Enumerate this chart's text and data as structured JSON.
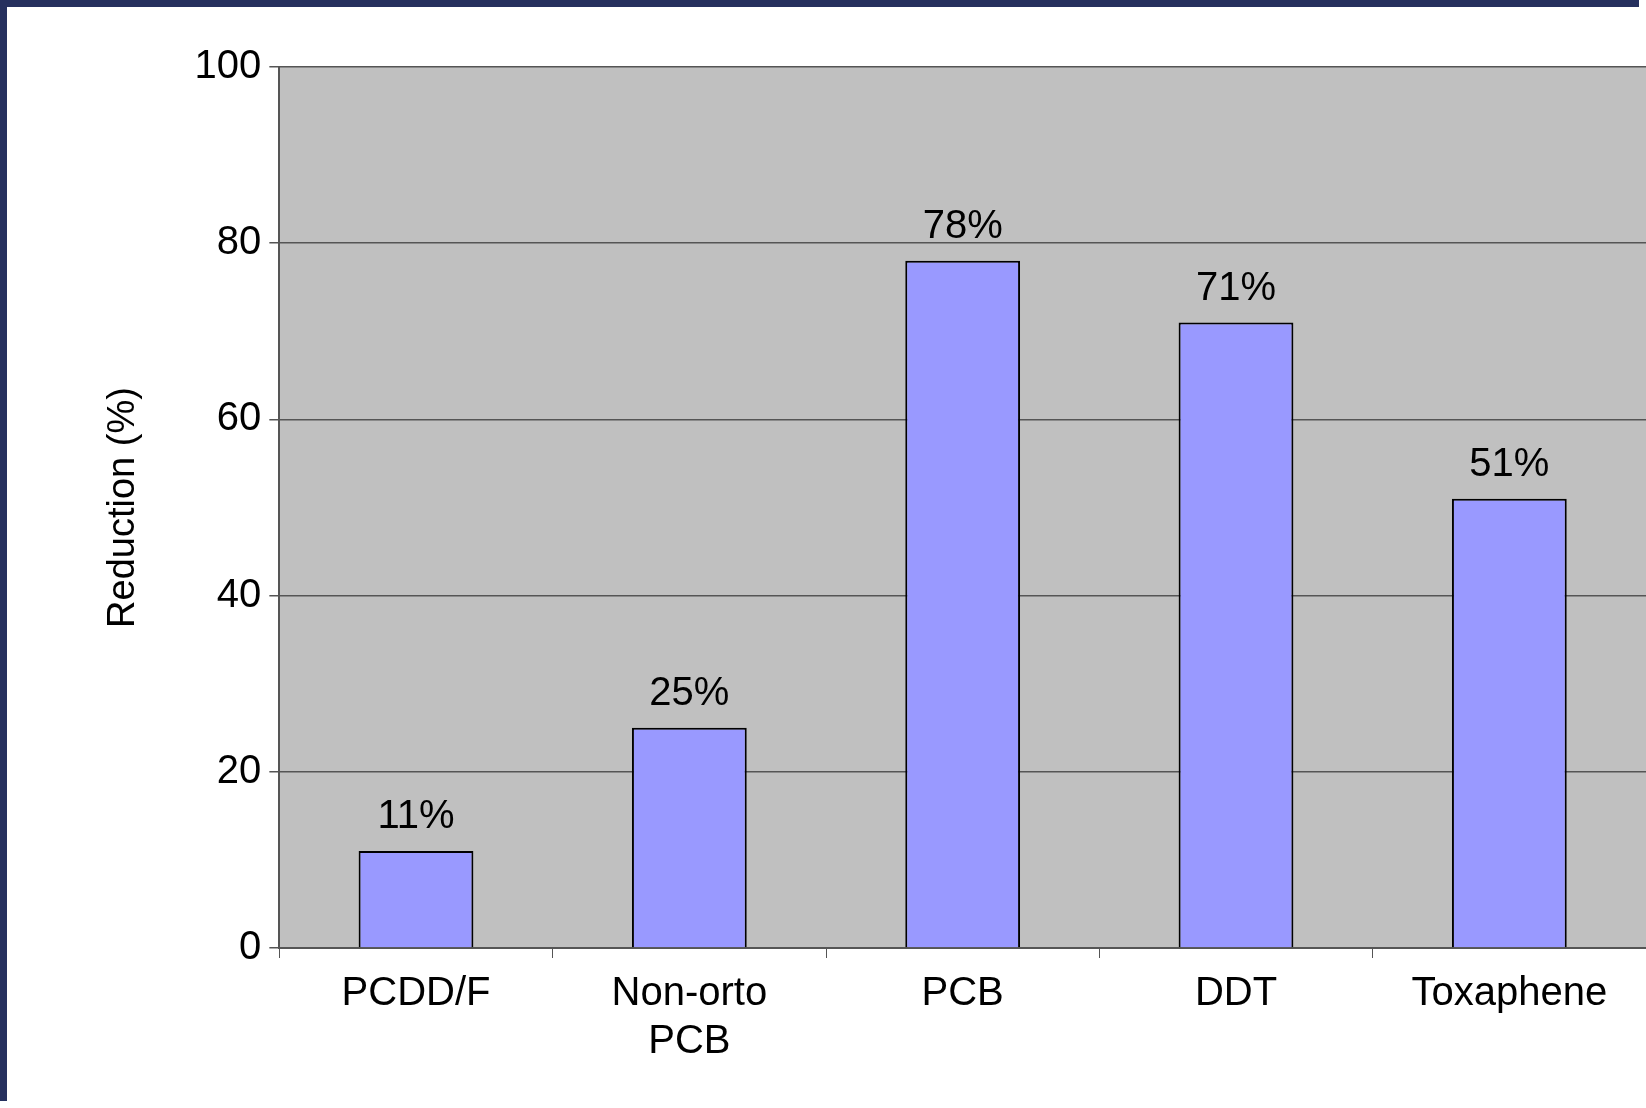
{
  "chart_data": {
    "type": "bar",
    "ylabel": "Reduction (%)",
    "categories": [
      "PCDD/F",
      "Non-orto PCB",
      "PCB",
      "DDT",
      "Toxaphene"
    ],
    "values": [
      11,
      25,
      78,
      71,
      51
    ],
    "color": "#9999ff",
    "value_labels": [
      "11%",
      "25%",
      "78%",
      "71%",
      "51%"
    ],
    "ylim": [
      0,
      100
    ],
    "yticks": [
      0,
      20,
      40,
      60,
      80,
      100
    ],
    "grid": "y",
    "legend": false
  }
}
